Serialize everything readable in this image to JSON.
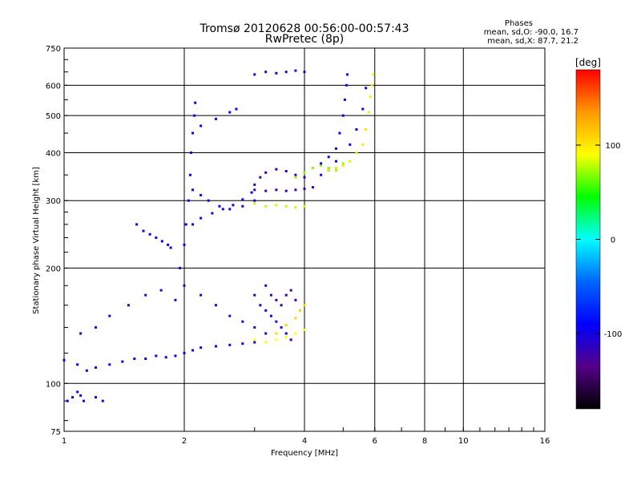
{
  "chart_data": {
    "type": "scatter",
    "title": "Tromsø 20120628 00:56:00-00:57:43",
    "subtitle": "RwPretec (8p)",
    "xlabel": "Frequency [MHz]",
    "ylabel": "Stationary phase Virtual Height [km]",
    "x_scale": "log",
    "y_scale": "log",
    "xlim": [
      1,
      16
    ],
    "ylim": [
      75,
      750
    ],
    "xticks": [
      1,
      2,
      4,
      6,
      8,
      10,
      16
    ],
    "xtick_labels": [
      "1",
      "2",
      "4",
      "6",
      "8",
      "10",
      "16"
    ],
    "x_gridlines": [
      2,
      4,
      6,
      8,
      10
    ],
    "yticks": [
      75,
      100,
      200,
      300,
      400,
      500,
      600,
      750
    ],
    "ytick_labels": [
      "75",
      "100",
      "200",
      "300",
      "400",
      "500",
      "600",
      "750"
    ],
    "y_gridlines": [
      100,
      200,
      300,
      400,
      500,
      600
    ],
    "grid": true,
    "stats": {
      "heading": "Phases",
      "line_o": "mean, sd,O: -90.0, 16.7",
      "line_x": "mean, sd,X:  87.7, 21.2"
    },
    "colorbar": {
      "label": "[deg]",
      "range": [
        -180,
        180
      ],
      "ticks": [
        100,
        0,
        -100
      ],
      "tick_labels": [
        "100",
        "0",
        "-100"
      ],
      "colors": [
        "#ff0000",
        "#ff9900",
        "#ffff00",
        "#00ff00",
        "#00ffff",
        "#0066ff",
        "#0000ff",
        "#550088",
        "#000000"
      ]
    },
    "traces": [
      {
        "phase": -100,
        "points": [
          [
            1.0,
            115
          ],
          [
            1.08,
            112
          ],
          [
            1.14,
            108
          ],
          [
            1.2,
            110
          ],
          [
            1.3,
            112
          ],
          [
            1.4,
            114
          ],
          [
            1.5,
            116
          ],
          [
            1.6,
            116
          ],
          [
            1.7,
            118
          ],
          [
            1.8,
            117
          ],
          [
            1.9,
            118
          ],
          [
            2.0,
            120
          ],
          [
            2.1,
            122
          ],
          [
            2.2,
            124
          ],
          [
            2.4,
            125
          ],
          [
            2.6,
            126
          ],
          [
            2.8,
            127
          ],
          [
            3.0,
            128
          ]
        ]
      },
      {
        "phase": -110,
        "points": [
          [
            1.1,
            135
          ],
          [
            1.2,
            140
          ],
          [
            1.3,
            150
          ],
          [
            1.45,
            160
          ],
          [
            1.6,
            170
          ],
          [
            1.75,
            175
          ],
          [
            1.9,
            165
          ],
          [
            2.0,
            180
          ],
          [
            2.2,
            170
          ],
          [
            2.4,
            160
          ],
          [
            2.6,
            150
          ],
          [
            2.8,
            145
          ],
          [
            3.0,
            140
          ],
          [
            3.2,
            135
          ]
        ]
      },
      {
        "phase": -95,
        "points": [
          [
            1.52,
            260
          ],
          [
            1.58,
            250
          ],
          [
            1.64,
            245
          ],
          [
            1.7,
            240
          ],
          [
            1.76,
            235
          ],
          [
            1.82,
            230
          ],
          [
            1.85,
            226
          ]
        ]
      },
      {
        "phase": -95,
        "points": [
          [
            1.95,
            200
          ],
          [
            2.0,
            230
          ],
          [
            2.02,
            260
          ],
          [
            2.05,
            300
          ],
          [
            2.07,
            350
          ],
          [
            2.08,
            400
          ],
          [
            2.1,
            450
          ],
          [
            2.12,
            500
          ],
          [
            2.13,
            540
          ]
        ]
      },
      {
        "phase": -100,
        "points": [
          [
            2.1,
            260
          ],
          [
            2.2,
            270
          ],
          [
            2.35,
            278
          ],
          [
            2.5,
            285
          ],
          [
            2.65,
            292
          ],
          [
            2.8,
            302
          ],
          [
            2.95,
            315
          ]
        ]
      },
      {
        "phase": -100,
        "points": [
          [
            2.1,
            320
          ],
          [
            2.2,
            310
          ],
          [
            2.3,
            300
          ],
          [
            2.45,
            290
          ],
          [
            2.6,
            285
          ],
          [
            2.8,
            290
          ],
          [
            3.0,
            300
          ]
        ]
      },
      {
        "phase": -95,
        "points": [
          [
            2.2,
            470
          ],
          [
            2.4,
            490
          ],
          [
            2.6,
            510
          ],
          [
            2.7,
            520
          ]
        ]
      },
      {
        "phase": -120,
        "points": [
          [
            3.0,
            320
          ],
          [
            3.2,
            318
          ],
          [
            3.4,
            320
          ],
          [
            3.6,
            318
          ],
          [
            3.8,
            320
          ],
          [
            4.0,
            322
          ],
          [
            4.2,
            325
          ]
        ]
      },
      {
        "phase": -115,
        "points": [
          [
            3.0,
            330
          ],
          [
            3.1,
            345
          ],
          [
            3.2,
            355
          ],
          [
            3.4,
            362
          ],
          [
            3.6,
            358
          ],
          [
            3.8,
            350
          ],
          [
            4.0,
            345
          ]
        ]
      },
      {
        "phase": 70,
        "points": [
          [
            3.8,
            345
          ],
          [
            4.0,
            355
          ],
          [
            4.2,
            365
          ],
          [
            4.4,
            370
          ],
          [
            4.6,
            365
          ],
          [
            4.8,
            360
          ],
          [
            5.0,
            375
          ]
        ]
      },
      {
        "phase": -100,
        "points": [
          [
            4.4,
            375
          ],
          [
            4.6,
            390
          ],
          [
            4.8,
            410
          ],
          [
            4.9,
            450
          ],
          [
            5.0,
            500
          ],
          [
            5.05,
            550
          ],
          [
            5.1,
            600
          ],
          [
            5.12,
            640
          ]
        ]
      },
      {
        "phase": -100,
        "points": [
          [
            4.4,
            350
          ],
          [
            4.6,
            360
          ],
          [
            4.8,
            380
          ],
          [
            5.2,
            420
          ],
          [
            5.4,
            460
          ],
          [
            5.6,
            520
          ],
          [
            5.7,
            590
          ]
        ]
      },
      {
        "phase": 100,
        "points": [
          [
            4.6,
            360
          ],
          [
            4.8,
            365
          ],
          [
            5.0,
            370
          ],
          [
            5.2,
            380
          ],
          [
            5.4,
            400
          ],
          [
            5.6,
            420
          ],
          [
            5.7,
            460
          ],
          [
            5.8,
            510
          ],
          [
            5.85,
            560
          ],
          [
            5.9,
            600
          ],
          [
            5.95,
            640
          ]
        ]
      },
      {
        "phase": -110,
        "points": [
          [
            3.0,
            640
          ],
          [
            3.2,
            650
          ],
          [
            3.4,
            645
          ],
          [
            3.6,
            650
          ],
          [
            3.8,
            655
          ],
          [
            4.0,
            650
          ]
        ]
      },
      {
        "phase": -105,
        "points": [
          [
            3.0,
            170
          ],
          [
            3.1,
            160
          ],
          [
            3.2,
            155
          ],
          [
            3.3,
            150
          ],
          [
            3.4,
            145
          ],
          [
            3.5,
            140
          ],
          [
            3.6,
            135
          ],
          [
            3.7,
            130
          ]
        ]
      },
      {
        "phase": -125,
        "points": [
          [
            3.2,
            180
          ],
          [
            3.3,
            170
          ],
          [
            3.4,
            165
          ],
          [
            3.5,
            160
          ],
          [
            3.6,
            170
          ],
          [
            3.7,
            175
          ],
          [
            3.8,
            165
          ]
        ]
      },
      {
        "phase": 90,
        "points": [
          [
            3.0,
            130
          ],
          [
            3.2,
            128
          ],
          [
            3.4,
            130
          ],
          [
            3.6,
            132
          ],
          [
            3.8,
            135
          ],
          [
            4.0,
            138
          ]
        ]
      },
      {
        "phase": 110,
        "points": [
          [
            3.4,
            135
          ],
          [
            3.6,
            142
          ],
          [
            3.8,
            148
          ],
          [
            3.9,
            155
          ],
          [
            4.0,
            160
          ]
        ]
      },
      {
        "phase": 80,
        "points": [
          [
            3.0,
            295
          ],
          [
            3.2,
            290
          ],
          [
            3.4,
            292
          ],
          [
            3.6,
            290
          ],
          [
            3.8,
            288
          ],
          [
            4.0,
            290
          ]
        ]
      },
      {
        "phase": -100,
        "points": [
          [
            1.02,
            90
          ],
          [
            1.05,
            92
          ],
          [
            1.08,
            95
          ],
          [
            1.1,
            93
          ],
          [
            1.12,
            90
          ],
          [
            1.2,
            92
          ],
          [
            1.25,
            90
          ]
        ]
      }
    ]
  }
}
